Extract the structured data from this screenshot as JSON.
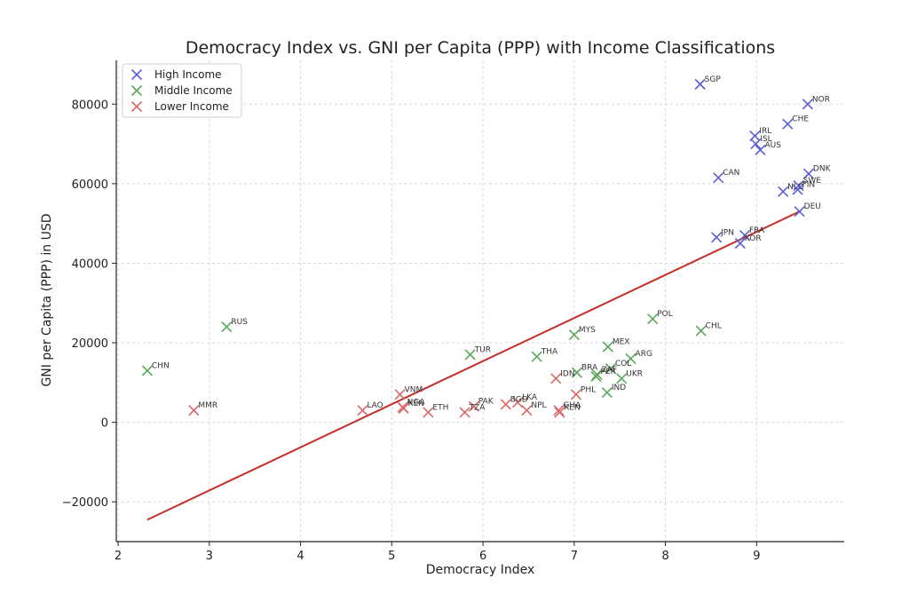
{
  "chart_data": {
    "type": "scatter",
    "title": "Democracy Index vs. GNI per Capita (PPP) with Income Classifications",
    "xlabel": "Democracy Index",
    "ylabel": "GNI per Capita (PPP) in USD",
    "xlim": [
      1.98,
      9.96
    ],
    "ylim": [
      -30000,
      91000
    ],
    "xticks": [
      2,
      3,
      4,
      5,
      6,
      7,
      8,
      9
    ],
    "yticks": [
      -20000,
      0,
      20000,
      40000,
      60000,
      80000
    ],
    "ytick_labels": [
      "−20000",
      "0",
      "20000",
      "40000",
      "60000",
      "80000"
    ],
    "grid": true,
    "legend_position": "top-left",
    "series": [
      {
        "name": "High Income",
        "color": "#5a5fd6",
        "marker": "x",
        "points": [
          {
            "label": "SGP",
            "x": 8.38,
            "y": 85000
          },
          {
            "label": "NOR",
            "x": 9.56,
            "y": 80000
          },
          {
            "label": "CHE",
            "x": 9.34,
            "y": 75000
          },
          {
            "label": "IRL",
            "x": 8.98,
            "y": 72000
          },
          {
            "label": "ISL",
            "x": 8.99,
            "y": 70000
          },
          {
            "label": "AUS",
            "x": 9.04,
            "y": 68500
          },
          {
            "label": "DNK",
            "x": 9.57,
            "y": 62500
          },
          {
            "label": "CAN",
            "x": 8.58,
            "y": 61500
          },
          {
            "label": "SWE",
            "x": 9.46,
            "y": 59500
          },
          {
            "label": "NLD",
            "x": 9.29,
            "y": 58000
          },
          {
            "label": "FIN",
            "x": 9.45,
            "y": 58500
          },
          {
            "label": "DEU",
            "x": 9.47,
            "y": 53000
          },
          {
            "label": "FRA",
            "x": 8.87,
            "y": 47000
          },
          {
            "label": "JPN",
            "x": 8.56,
            "y": 46500
          },
          {
            "label": "KOR",
            "x": 8.82,
            "y": 45000
          }
        ]
      },
      {
        "name": "Middle Income",
        "color": "#5aa75a",
        "marker": "x",
        "points": [
          {
            "label": "POL",
            "x": 7.86,
            "y": 26000
          },
          {
            "label": "RUS",
            "x": 3.19,
            "y": 24000
          },
          {
            "label": "CHL",
            "x": 8.39,
            "y": 23000
          },
          {
            "label": "MYS",
            "x": 7.0,
            "y": 22000
          },
          {
            "label": "MEX",
            "x": 7.37,
            "y": 19000
          },
          {
            "label": "TUR",
            "x": 5.86,
            "y": 17000
          },
          {
            "label": "THA",
            "x": 6.59,
            "y": 16500
          },
          {
            "label": "ARG",
            "x": 7.62,
            "y": 16000
          },
          {
            "label": "CHN",
            "x": 2.32,
            "y": 13000
          },
          {
            "label": "COL",
            "x": 7.4,
            "y": 13500
          },
          {
            "label": "BRA",
            "x": 7.03,
            "y": 12500
          },
          {
            "label": "ZAF",
            "x": 7.25,
            "y": 12000
          },
          {
            "label": "PER",
            "x": 7.24,
            "y": 11500
          },
          {
            "label": "UKR",
            "x": 7.52,
            "y": 11000
          },
          {
            "label": "IND",
            "x": 7.36,
            "y": 7500
          }
        ]
      },
      {
        "name": "Lower Income",
        "color": "#d96767",
        "marker": "x",
        "points": [
          {
            "label": "IDN",
            "x": 6.8,
            "y": 11000
          },
          {
            "label": "VNM",
            "x": 5.09,
            "y": 7000
          },
          {
            "label": "PHL",
            "x": 7.02,
            "y": 7000
          },
          {
            "label": "LKA",
            "x": 6.38,
            "y": 5000
          },
          {
            "label": "BGD",
            "x": 6.25,
            "y": 4500
          },
          {
            "label": "PAK",
            "x": 5.9,
            "y": 4000
          },
          {
            "label": "NGA",
            "x": 5.12,
            "y": 3800
          },
          {
            "label": "KEN",
            "x": 5.13,
            "y": 3500
          },
          {
            "label": "MMR",
            "x": 2.83,
            "y": 3000
          },
          {
            "label": "LAO",
            "x": 4.68,
            "y": 3000
          },
          {
            "label": "NPL",
            "x": 6.48,
            "y": 3000
          },
          {
            "label": "GHA",
            "x": 6.83,
            "y": 3000
          },
          {
            "label": "KEN",
            "x": 6.84,
            "y": 2500
          },
          {
            "label": "ETH",
            "x": 5.4,
            "y": 2500
          },
          {
            "label": "TZA",
            "x": 5.8,
            "y": 2500
          }
        ]
      }
    ],
    "trend_line": {
      "color": "#c62f2a",
      "x": [
        2.32,
        9.47
      ],
      "y": [
        -24500,
        53000
      ]
    }
  }
}
